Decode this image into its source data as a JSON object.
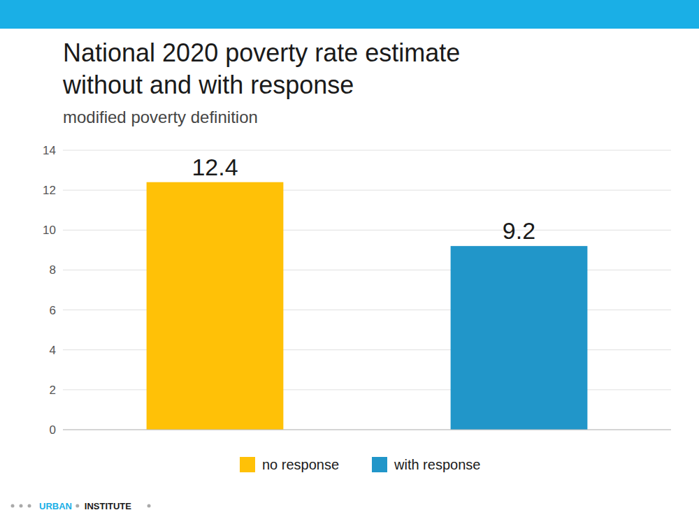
{
  "chart_data": {
    "type": "bar",
    "title": "National 2020 poverty rate estimate\nwithout and with response",
    "subtitle": "modified poverty definition",
    "categories": [
      "no response",
      "with response"
    ],
    "values": [
      12.4,
      9.2
    ],
    "colors": [
      "#FFC107",
      "#2196C9"
    ],
    "ylim": [
      0,
      14
    ],
    "yticks": [
      0,
      2,
      4,
      6,
      8,
      10,
      12,
      14
    ],
    "grid": true,
    "data_labels": true,
    "legend": "bottom",
    "tick_labels": "y",
    "annotations": [
      "URBAN",
      "INSTITUTE"
    ]
  }
}
